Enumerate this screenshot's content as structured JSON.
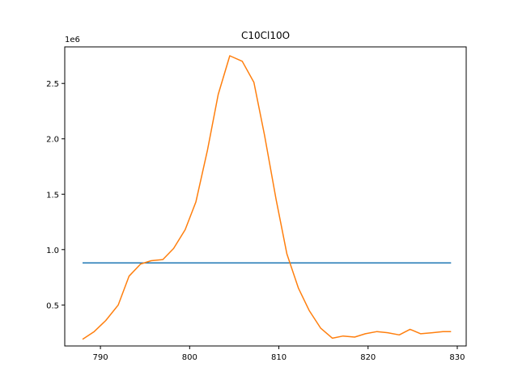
{
  "chart_data": {
    "type": "line",
    "title": "C10Cl10O",
    "xlabel": "",
    "ylabel": "",
    "y_offset_label": "1e6",
    "xlim": [
      786,
      831
    ],
    "ylim": [
      0.13,
      2.83
    ],
    "x_ticks": [
      790,
      800,
      810,
      820,
      830
    ],
    "y_ticks": [
      0.5,
      1.0,
      1.5,
      2.0,
      2.5
    ],
    "x_tick_labels": [
      "790",
      "800",
      "810",
      "820",
      "830"
    ],
    "y_tick_labels": [
      "0.5",
      "1.0",
      "1.5",
      "2.0",
      "2.5"
    ],
    "grid": false,
    "legend": "none",
    "series": [
      {
        "color": "#1f77b4",
        "x": [
          788.0,
          829.3
        ],
        "y": [
          0.88,
          0.88
        ]
      },
      {
        "color": "#ff7f0e",
        "x": [
          788.0,
          789.3,
          790.6,
          792.0,
          793.2,
          794.5,
          795.7,
          797.0,
          798.2,
          799.5,
          800.7,
          802.0,
          803.2,
          804.5,
          805.9,
          807.2,
          808.4,
          809.7,
          810.9,
          812.2,
          813.4,
          814.7,
          816.0,
          817.2,
          818.5,
          819.7,
          821.0,
          822.2,
          823.5,
          824.7,
          825.9,
          827.2,
          828.4,
          829.3
        ],
        "y": [
          0.19,
          0.26,
          0.36,
          0.5,
          0.76,
          0.87,
          0.9,
          0.91,
          1.01,
          1.18,
          1.43,
          1.9,
          2.4,
          2.75,
          2.7,
          2.51,
          2.03,
          1.45,
          0.96,
          0.65,
          0.45,
          0.29,
          0.2,
          0.22,
          0.21,
          0.24,
          0.26,
          0.25,
          0.23,
          0.28,
          0.24,
          0.25,
          0.26,
          0.26
        ]
      }
    ]
  }
}
